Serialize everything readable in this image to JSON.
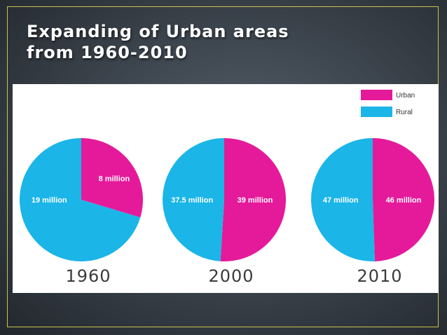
{
  "slide": {
    "title_lines": [
      "Expanding of Urban areas",
      "from 1960-2010"
    ]
  },
  "colors": {
    "urban": "#e51a9a",
    "rural": "#1bb5e8",
    "frame": "#c9c34a"
  },
  "chart_data": {
    "type": "pie",
    "legend": {
      "position": "top-right",
      "entries": [
        {
          "label": "Urban",
          "color": "#e51a9a"
        },
        {
          "label": "Rural",
          "color": "#1bb5e8"
        }
      ]
    },
    "charts": [
      {
        "year": "1960",
        "slices": [
          {
            "name": "Urban",
            "value": 8,
            "label": "8 million",
            "color": "#e51a9a"
          },
          {
            "name": "Rural",
            "value": 19,
            "label": "19 million",
            "color": "#1bb5e8"
          }
        ]
      },
      {
        "year": "2000",
        "slices": [
          {
            "name": "Urban",
            "value": 39,
            "label": "39 million",
            "color": "#e51a9a"
          },
          {
            "name": "Rural",
            "value": 37.5,
            "label": "37.5 million",
            "color": "#1bb5e8"
          }
        ]
      },
      {
        "year": "2010",
        "slices": [
          {
            "name": "Urban",
            "value": 46,
            "label": "46 million",
            "color": "#e51a9a"
          },
          {
            "name": "Rural",
            "value": 47,
            "label": "47 million",
            "color": "#1bb5e8"
          }
        ]
      }
    ]
  }
}
